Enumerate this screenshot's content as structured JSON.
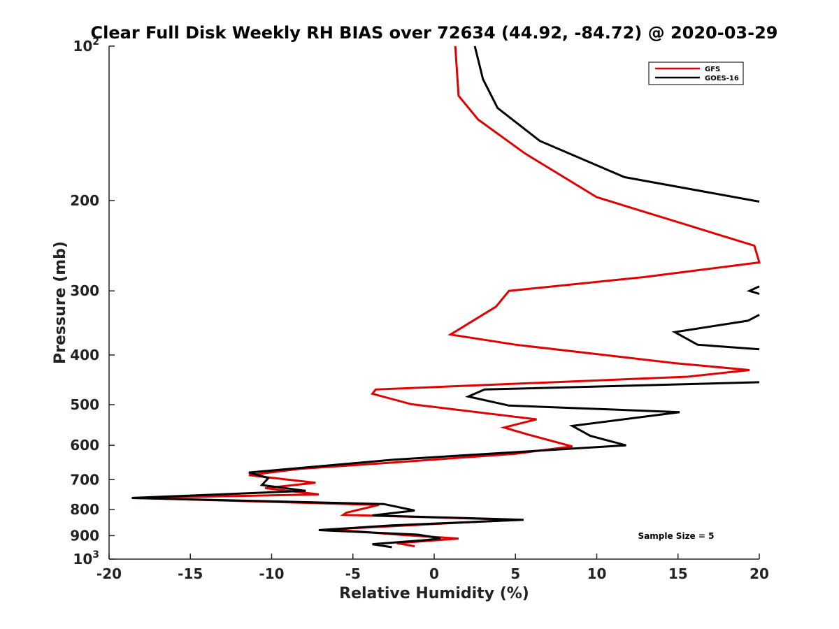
{
  "chart_data": {
    "type": "line",
    "title": "Clear Full Disk Weekly RH BIAS over 72634 (44.92, -84.72) @ 2020-03-29",
    "xlabel": "Relative Humidity (%)",
    "ylabel": "Pressure (mb)",
    "xlim": [
      -20,
      20
    ],
    "ylim": [
      100,
      1000
    ],
    "y_scale": "log",
    "y_reversed": true,
    "x_ticks": [
      -20,
      -15,
      -10,
      -5,
      0,
      5,
      10,
      15,
      20
    ],
    "y_ticks": [
      {
        "value": 100,
        "base": "10",
        "exp": "2"
      },
      {
        "value": 200,
        "label": "200"
      },
      {
        "value": 300,
        "label": "300"
      },
      {
        "value": 400,
        "label": "400"
      },
      {
        "value": 500,
        "label": "500"
      },
      {
        "value": 600,
        "label": "600"
      },
      {
        "value": 700,
        "label": "700"
      },
      {
        "value": 800,
        "label": "800"
      },
      {
        "value": 900,
        "label": "900"
      },
      {
        "value": 1000,
        "base": "10",
        "exp": "3"
      }
    ],
    "legend": {
      "position": "top-right",
      "entries": [
        "GFS",
        "GOES-16"
      ]
    },
    "annotation": "Sample Size = 5",
    "series": [
      {
        "name": "GFS",
        "color": "#e00000",
        "points": [
          [
            1.3,
            100
          ],
          [
            1.5,
            125
          ],
          [
            2.7,
            139
          ],
          [
            5.6,
            162
          ],
          [
            10.0,
            197
          ],
          [
            19.7,
            245
          ],
          [
            20.0,
            264
          ],
          [
            12.9,
            282
          ],
          [
            4.6,
            300
          ],
          [
            3.8,
            322
          ],
          [
            1.0,
            365
          ],
          [
            5.0,
            382
          ],
          [
            14.8,
            415
          ],
          [
            19.4,
            428
          ],
          [
            15.6,
            441
          ],
          [
            -3.6,
            467
          ],
          [
            -3.8,
            476
          ],
          [
            -1.4,
            499
          ],
          [
            6.3,
            534
          ],
          [
            4.3,
            554
          ],
          [
            5.8,
            572
          ],
          [
            8.5,
            603
          ],
          [
            5.0,
            623
          ],
          [
            -2.5,
            648
          ],
          [
            -8.3,
            667
          ],
          [
            -11.4,
            686
          ],
          [
            -7.3,
            710
          ],
          [
            -10.4,
            727
          ],
          [
            -7.1,
            748
          ],
          [
            -18.5,
            760
          ],
          [
            -3.4,
            784
          ],
          [
            -5.4,
            812
          ],
          [
            -5.6,
            820
          ],
          [
            5.1,
            838
          ],
          [
            -6.4,
            875
          ],
          [
            -2.2,
            896
          ],
          [
            1.5,
            912
          ],
          [
            -2.3,
            931
          ],
          [
            -1.2,
            944
          ]
        ]
      },
      {
        "name": "GOES-16",
        "color": "#000000",
        "segments": [
          [
            [
              2.5,
              100
            ],
            [
              3.0,
              116
            ],
            [
              3.9,
              132
            ],
            [
              6.5,
              153
            ],
            [
              11.7,
              180
            ],
            [
              20.0,
              201
            ]
          ],
          [
            [
              20.0,
              294
            ],
            [
              19.4,
              300
            ],
            [
              20.0,
              304
            ]
          ],
          [
            [
              20.0,
              334
            ],
            [
              19.3,
              343
            ],
            [
              14.8,
              361
            ],
            [
              16.2,
              382
            ],
            [
              20.0,
              390
            ]
          ],
          [
            [
              20.0,
              452
            ],
            [
              3.1,
              467
            ],
            [
              2.1,
              482
            ],
            [
              4.6,
              502
            ],
            [
              15.1,
              517
            ],
            [
              8.5,
              550
            ],
            [
              9.6,
              575
            ],
            [
              11.8,
              600
            ],
            [
              -2.5,
              640
            ],
            [
              -11.4,
              678
            ],
            [
              -10.2,
              695
            ],
            [
              -10.6,
              717
            ],
            [
              -7.9,
              736
            ],
            [
              -18.6,
              760
            ],
            [
              -3.1,
              781
            ],
            [
              -1.2,
              804
            ],
            [
              -3.8,
              822
            ],
            [
              5.5,
              838
            ],
            [
              -2.7,
              860
            ],
            [
              -7.1,
              878
            ],
            [
              -1.0,
              896
            ],
            [
              0.4,
              911
            ],
            [
              -0.5,
              918
            ],
            [
              -3.8,
              935
            ],
            [
              -2.6,
              948
            ]
          ]
        ]
      }
    ]
  }
}
